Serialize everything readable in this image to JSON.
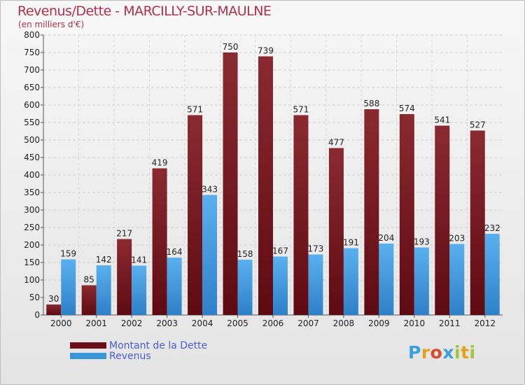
{
  "header": {
    "title": "Revenus/Dette - MARCILLY-SUR-MAULNE",
    "subtitle": "(en milliers d'€)"
  },
  "chart_data": {
    "type": "bar",
    "title": "Revenus/Dette - MARCILLY-SUR-MAULNE",
    "ylabel": "(en milliers d'€)",
    "xlabel": "",
    "ylim": [
      0,
      800
    ],
    "yticks": [
      0,
      50,
      100,
      150,
      200,
      250,
      300,
      350,
      400,
      450,
      500,
      550,
      600,
      650,
      700,
      750,
      800
    ],
    "grid": true,
    "categories": [
      "2000",
      "2001",
      "2002",
      "2003",
      "2004",
      "2005",
      "2006",
      "2007",
      "2008",
      "2009",
      "2010",
      "2011",
      "2012"
    ],
    "series": [
      {
        "name": "Montant de la Dette",
        "color": "#7a1a22",
        "values": [
          30,
          85,
          217,
          419,
          571,
          750,
          739,
          571,
          477,
          588,
          574,
          541,
          527
        ]
      },
      {
        "name": "Revenus",
        "color": "#3a94d8",
        "values": [
          159,
          142,
          141,
          164,
          343,
          158,
          167,
          173,
          191,
          204,
          193,
          203,
          232
        ]
      }
    ],
    "legend_position": "bottom-left"
  },
  "legend": {
    "items": [
      {
        "label": "Montant de la Dette",
        "color": "#6b0f18"
      },
      {
        "label": "Revenus",
        "color": "#3a94d8"
      }
    ]
  },
  "logo": {
    "letters": [
      "P",
      "r",
      "o",
      "x",
      "i",
      "t",
      "i"
    ],
    "colors": [
      "#3aa0e0",
      "#e6a21a",
      "#d84a2a",
      "#3aa0e0",
      "#9cc83a",
      "#e6a21a",
      "#9cc83a"
    ]
  }
}
